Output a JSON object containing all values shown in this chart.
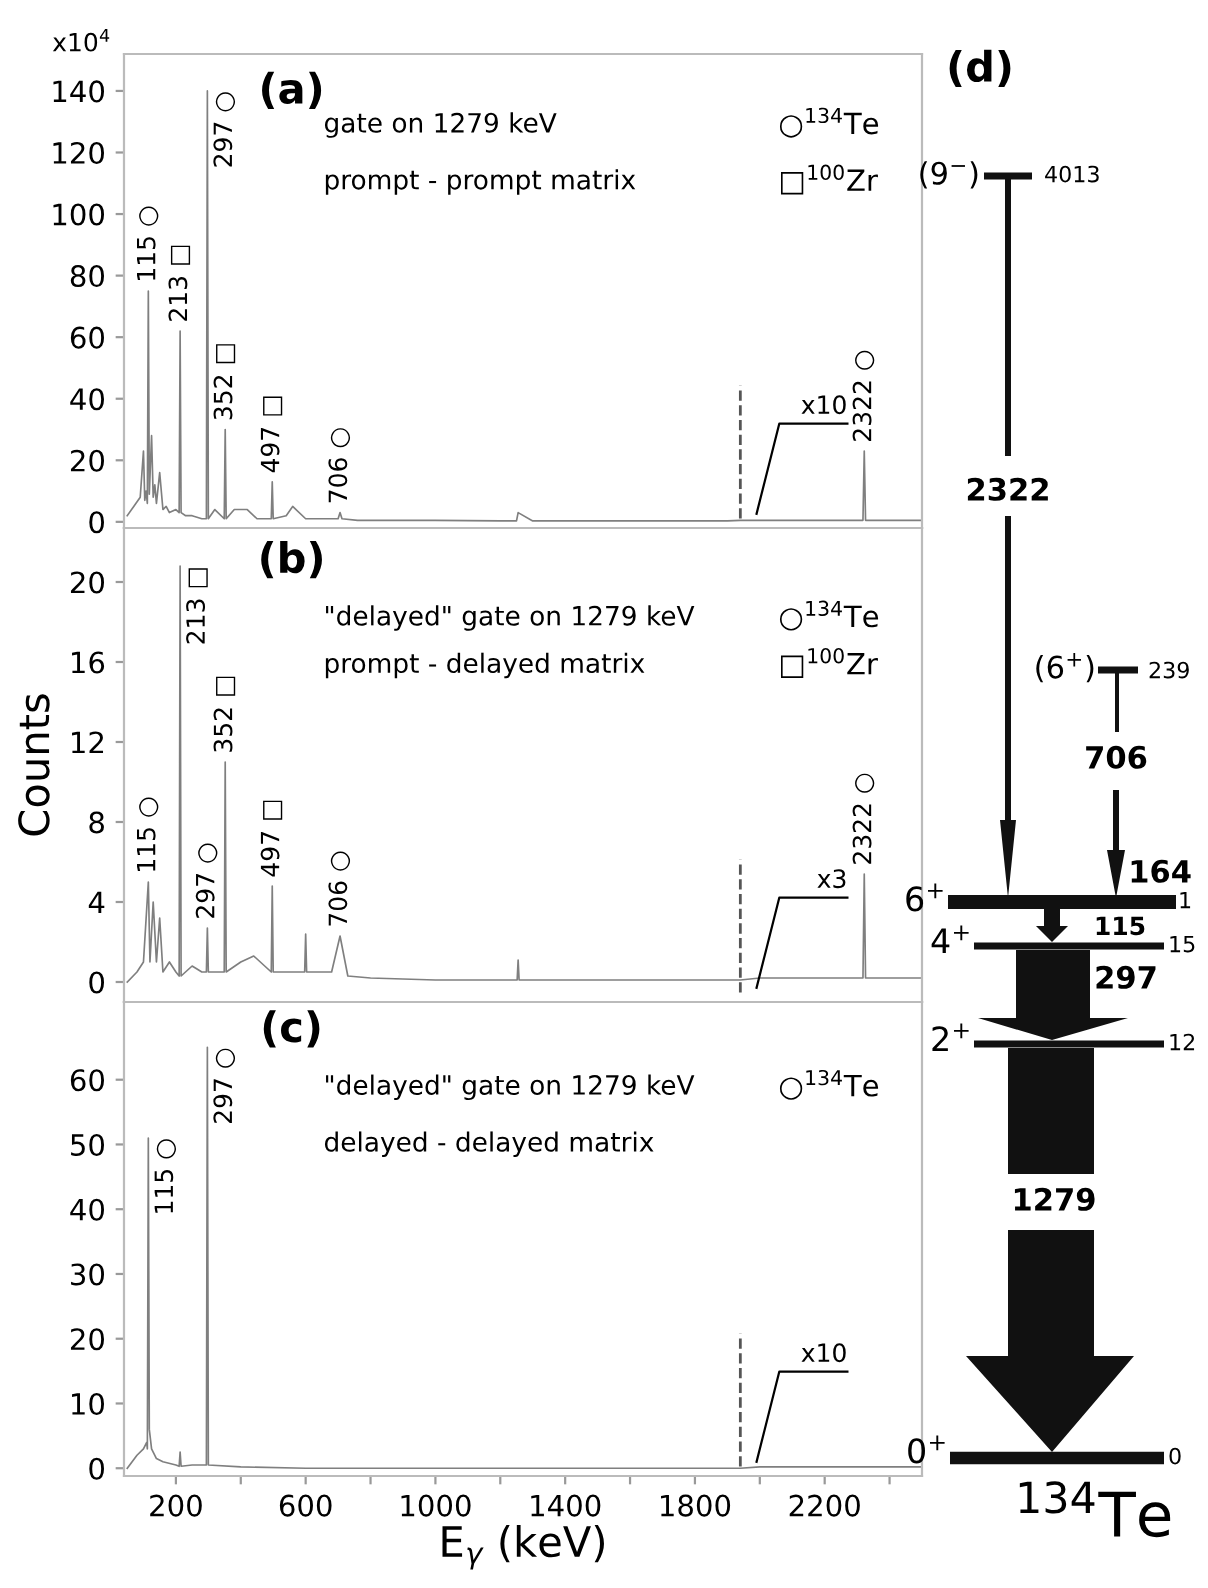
{
  "chart_data": [
    {
      "type": "line",
      "title": "(a)",
      "tick_labels": "y",
      "legend": false,
      "grid": false,
      "marker": "none",
      "line_style": "solid",
      "xlim": [
        40,
        2500
      ],
      "xticks": [
        {
          "value": 200,
          "label": null
        },
        {
          "value": 400,
          "label": null
        },
        {
          "value": 600,
          "label": null
        },
        {
          "value": 800,
          "label": null
        },
        {
          "value": 1000,
          "label": null
        },
        {
          "value": 1200,
          "label": null
        },
        {
          "value": 1400,
          "label": null
        },
        {
          "value": 1600,
          "label": null
        },
        {
          "value": 1800,
          "label": null
        },
        {
          "value": 2000,
          "label": null
        },
        {
          "value": 2200,
          "label": null
        },
        {
          "value": 2400,
          "label": null
        }
      ],
      "ylim": [
        -2,
        152
      ],
      "yticks": [
        0,
        20,
        40,
        60,
        80,
        100,
        120,
        140
      ],
      "x": [
        50,
        70,
        90,
        100,
        104,
        108,
        112,
        115,
        118,
        125,
        130,
        135,
        140,
        150,
        160,
        170,
        180,
        200,
        210,
        213,
        216,
        230,
        250,
        280,
        294,
        297,
        300,
        320,
        349,
        352,
        355,
        380,
        420,
        450,
        494,
        497,
        500,
        540,
        560,
        600,
        640,
        700,
        706,
        712,
        760,
        800,
        1000,
        1200,
        1250,
        1255,
        1300,
        1600,
        1900,
        1940,
        2000,
        2300,
        2318,
        2322,
        2326,
        2400,
        2500
      ],
      "series": [
        {
          "color": "#7f7f7f",
          "values": [
            2,
            5,
            8,
            23,
            7,
            10,
            6,
            75,
            9,
            28,
            8,
            12,
            6,
            16,
            4,
            5,
            3,
            4,
            3,
            62,
            3,
            2,
            2,
            1,
            1,
            140,
            1,
            4,
            1,
            30,
            1,
            4,
            4,
            1,
            1,
            13,
            1,
            2,
            5,
            1,
            1,
            1,
            3,
            1,
            0.5,
            0.5,
            0.5,
            0.3,
            0.3,
            3,
            0.3,
            0.3,
            0.3,
            0.5,
            0.5,
            0.5,
            0.5,
            23,
            0.5,
            0.5,
            0.5
          ]
        }
      ],
      "ref_lines": [
        {
          "axis": "x",
          "value": 1940,
          "label": "x10",
          "line_style": "dashed",
          "color": "#555555"
        }
      ],
      "annotations": [
        "x10$^{4}$",
        "gate on 1279 keV",
        "prompt - prompt matrix",
        "○$^{134}$Te",
        "□$^{100}$Zr",
        {
          "text": "115 ○",
          "x": 115,
          "y": 75
        },
        {
          "text": "213 □",
          "x": 213,
          "y": 62
        },
        {
          "text": "297 ○",
          "x": 297,
          "y": 140
        },
        {
          "text": "352 □",
          "x": 352,
          "y": 30
        },
        {
          "text": "497 □",
          "x": 497,
          "y": 13
        },
        {
          "text": "706 ○",
          "x": 706,
          "y": 3
        },
        {
          "text": "2322 ○",
          "x": 2322,
          "y": 23
        }
      ]
    },
    {
      "type": "line",
      "title": "(b)",
      "ylabel": "Counts",
      "tick_labels": "y",
      "legend": false,
      "grid": false,
      "marker": "none",
      "line_style": "solid",
      "xlim": [
        40,
        2500
      ],
      "xticks": [
        {
          "value": 200,
          "label": null
        },
        {
          "value": 400,
          "label": null
        },
        {
          "value": 600,
          "label": null
        },
        {
          "value": 800,
          "label": null
        },
        {
          "value": 1000,
          "label": null
        },
        {
          "value": 1200,
          "label": null
        },
        {
          "value": 1400,
          "label": null
        },
        {
          "value": 1600,
          "label": null
        },
        {
          "value": 1800,
          "label": null
        },
        {
          "value": 2000,
          "label": null
        },
        {
          "value": 2200,
          "label": null
        },
        {
          "value": 2400,
          "label": null
        }
      ],
      "ylim": [
        -1,
        22.7
      ],
      "yticks": [
        0,
        4,
        8,
        12,
        16,
        20
      ],
      "x": [
        50,
        80,
        100,
        115,
        120,
        130,
        140,
        150,
        160,
        180,
        200,
        210,
        213,
        216,
        250,
        280,
        294,
        297,
        300,
        320,
        349,
        352,
        355,
        400,
        440,
        494,
        497,
        500,
        560,
        597,
        600,
        603,
        680,
        706,
        730,
        800,
        1000,
        1200,
        1252,
        1255,
        1258,
        1600,
        1940,
        2000,
        2300,
        2318,
        2322,
        2326,
        2500
      ],
      "series": [
        {
          "color": "#7f7f7f",
          "values": [
            0,
            0.5,
            1,
            5,
            1,
            4,
            1,
            3.2,
            0.5,
            1,
            0.5,
            0.3,
            20.8,
            0.3,
            0.8,
            0.5,
            0.5,
            2.7,
            0.5,
            0.5,
            0.5,
            11,
            0.5,
            1,
            1.3,
            0.5,
            4.8,
            0.5,
            0.5,
            0.5,
            2.4,
            0.5,
            0.5,
            2.3,
            0.3,
            0.2,
            0.1,
            0.1,
            0.1,
            1.1,
            0.1,
            0.1,
            0.1,
            0.2,
            0.2,
            0.2,
            5.4,
            0.2,
            0.2
          ]
        }
      ],
      "ref_lines": [
        {
          "axis": "x",
          "value": 1940,
          "label": "x3",
          "line_style": "dashed",
          "color": "#555555"
        }
      ],
      "annotations": [
        "\"delayed\" gate on 1279 keV",
        "prompt - delayed matrix",
        "○$^{134}$Te",
        "□$^{100}$Zr",
        {
          "text": "115 ○",
          "x": 115,
          "y": 5
        },
        {
          "text": "213 □",
          "x": 213,
          "y": 20.8
        },
        {
          "text": "297 ○",
          "x": 297,
          "y": 2.7
        },
        {
          "text": "352 □",
          "x": 352,
          "y": 11
        },
        {
          "text": "497 □",
          "x": 497,
          "y": 4.8
        },
        {
          "text": "706 ○",
          "x": 706,
          "y": 2.3
        },
        {
          "text": "2322 ○",
          "x": 2322,
          "y": 5.4
        }
      ]
    },
    {
      "type": "line",
      "title": "(c)",
      "xlabel": "E$_{γ}$ (keV)",
      "legend": false,
      "grid": false,
      "marker": "none",
      "line_style": "solid",
      "xlim": [
        40,
        2500
      ],
      "xticks": [
        200,
        {
          "value": 400,
          "label": null
        },
        600,
        {
          "value": 800,
          "label": null
        },
        1000,
        {
          "value": 1200,
          "label": null
        },
        1400,
        {
          "value": 1600,
          "label": null
        },
        1800,
        {
          "value": 2000,
          "label": null
        },
        2200,
        {
          "value": 2400,
          "label": null
        }
      ],
      "ylim": [
        -1.2,
        72
      ],
      "yticks": [
        0,
        10,
        20,
        30,
        40,
        50,
        60
      ],
      "x": [
        50,
        80,
        100,
        110,
        112,
        115,
        118,
        125,
        140,
        160,
        200,
        210,
        213,
        216,
        250,
        294,
        297,
        300,
        400,
        600,
        1000,
        1280,
        1600,
        1940,
        2000,
        2500
      ],
      "series": [
        {
          "color": "#7f7f7f",
          "values": [
            0,
            2,
            3,
            4,
            3,
            51,
            6,
            3,
            1.5,
            1,
            0.5,
            0.3,
            2.5,
            0.3,
            0.5,
            0.5,
            65,
            0.5,
            0.2,
            0,
            0,
            0,
            0,
            0,
            0.2,
            0.2
          ]
        }
      ],
      "ref_lines": [
        {
          "axis": "x",
          "value": 1940,
          "label": "x10",
          "line_style": "dashed",
          "color": "#555555"
        }
      ],
      "annotations": [
        "\"delayed\" gate on 1279 keV",
        "delayed - delayed matrix",
        "○$^{134}$Te",
        {
          "text": "115 ○",
          "x": 115,
          "y": 51
        },
        {
          "text": "297 ○",
          "x": 297,
          "y": 65
        }
      ]
    },
    {
      "type": "other",
      "title": "(d)",
      "annotations": [
        "(9$^{−}$)",
        "4013",
        "2322",
        "(6$^{+}$)",
        "239",
        "706",
        "164",
        "1",
        "6$^{+}$",
        "115",
        "15",
        "4$^{+}$",
        "297",
        "2$^{+}$",
        "12",
        "1279",
        "0$^{+}$",
        "0",
        "$^{134}$Te"
      ]
    }
  ]
}
